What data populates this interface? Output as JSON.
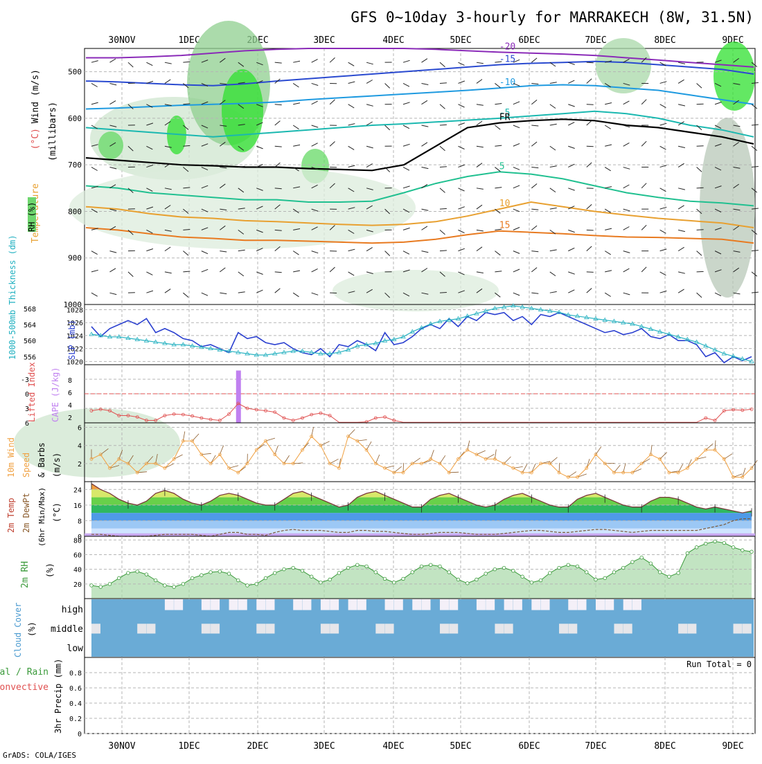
{
  "title": "GFS 0~10day 3-hourly for MARRAKECH (8W, 31.5N)",
  "credit": "GrADS: COLA/IGES",
  "dates": [
    "30NOV",
    "1DEC",
    "2DEC",
    "3DEC",
    "4DEC",
    "5DEC",
    "6DEC",
    "7DEC",
    "8DEC",
    "9DEC"
  ],
  "colors": {
    "grid": "#b5b5b5",
    "axis": "#000000",
    "thickness": "#2a3fd0",
    "slp": "#2ab3c2",
    "li": "#e05050",
    "cape": "#c080f0",
    "wind10": "#f0a040",
    "rh2m": "#3a9a3a",
    "cloud": "#6aabd6",
    "cloud_clear": "#f4f0f8"
  },
  "chart_data": [
    {
      "type": "heatmap",
      "name": "upper_air",
      "ylabel_rh": "RH (%)",
      "ylabel_main": [
        "Temperature (°C)Wind (m/s)",
        "(millibars)"
      ],
      "yticks": [
        "500",
        "600",
        "700",
        "800",
        "900",
        "1000"
      ],
      "ylim": [
        450,
        1000
      ],
      "temperature_contours": [
        {
          "label": "-20",
          "color": "#8a2ab8",
          "pressure": [
            470,
            470,
            468,
            465,
            460,
            455,
            452,
            450,
            450,
            450,
            450,
            452,
            455,
            458,
            460,
            462,
            465,
            470,
            475,
            480,
            485,
            490
          ]
        },
        {
          "label": "-15",
          "color": "#2a4ad0",
          "pressure": [
            520,
            522,
            525,
            528,
            530,
            526,
            520,
            515,
            510,
            505,
            500,
            495,
            490,
            485,
            482,
            480,
            478,
            480,
            485,
            490,
            495,
            505
          ]
        },
        {
          "label": "-10",
          "color": "#1e9ae0",
          "pressure": [
            580,
            578,
            575,
            572,
            570,
            568,
            565,
            560,
            556,
            552,
            548,
            544,
            540,
            535,
            530,
            528,
            530,
            535,
            540,
            550,
            560,
            570
          ]
        },
        {
          "label": "-5",
          "color": "#1ab8b0",
          "pressure": [
            620,
            625,
            630,
            635,
            640,
            635,
            630,
            625,
            620,
            615,
            612,
            608,
            604,
            600,
            595,
            590,
            585,
            590,
            600,
            615,
            625,
            640
          ]
        },
        {
          "label": "FR",
          "color": "#000000",
          "pressure": [
            685,
            690,
            695,
            700,
            702,
            705,
            705,
            708,
            710,
            712,
            700,
            660,
            620,
            610,
            605,
            602,
            605,
            615,
            620,
            630,
            640,
            655
          ]
        },
        {
          "label": "5",
          "color": "#20c090",
          "pressure": [
            745,
            750,
            760,
            765,
            770,
            775,
            775,
            780,
            780,
            778,
            760,
            740,
            725,
            715,
            720,
            730,
            745,
            760,
            770,
            778,
            782,
            788
          ]
        },
        {
          "label": "10",
          "color": "#e8a030",
          "pressure": [
            790,
            795,
            805,
            812,
            815,
            820,
            822,
            825,
            828,
            830,
            828,
            822,
            810,
            795,
            780,
            790,
            800,
            808,
            815,
            820,
            825,
            835
          ]
        },
        {
          "label": "15",
          "color": "#e87a20",
          "pressure": [
            835,
            840,
            848,
            855,
            858,
            862,
            862,
            864,
            866,
            868,
            866,
            860,
            850,
            842,
            845,
            848,
            852,
            855,
            856,
            858,
            860,
            868
          ]
        }
      ]
    },
    {
      "type": "line",
      "name": "thickness_slp",
      "ylabel_left": "1000-500mb Thickness (dm)",
      "ylabel_right": "SLP (mb)",
      "yticks_left": [
        "556",
        "560",
        "564",
        "568"
      ],
      "yticks_right": [
        "1020",
        "1022",
        "1024",
        "1026",
        "1028"
      ],
      "ylim_left": [
        554,
        569
      ],
      "ylim_right": [
        1019.5,
        1028.8
      ],
      "series": [
        {
          "name": "1000-500mb Thickness",
          "values": [
            563.5,
            561,
            563,
            564,
            565,
            564,
            565.5,
            562,
            563,
            562,
            560.5,
            560,
            558.5,
            559,
            558,
            557,
            562,
            560.5,
            561,
            559.5,
            559,
            559.5,
            558,
            557,
            556.5,
            558,
            556,
            559,
            558.5,
            560,
            559,
            557.5,
            562,
            559,
            559.5,
            561,
            563,
            564,
            563,
            565.5,
            563.5,
            566,
            565,
            567,
            566.5,
            567,
            565,
            566,
            564,
            566.5,
            566,
            567,
            566,
            565,
            564,
            563,
            562,
            562.5,
            561.5,
            562,
            563,
            561,
            560.5,
            561.5,
            560,
            560,
            559,
            556,
            557,
            554.5,
            556,
            555,
            556
          ]
        },
        {
          "name": "SLP",
          "values": [
            1024.2,
            1024,
            1023.8,
            1023.8,
            1023.6,
            1023.4,
            1023.2,
            1023,
            1022.8,
            1022.6,
            1022.6,
            1022.4,
            1022.2,
            1022,
            1021.8,
            1021.6,
            1021.4,
            1021.2,
            1021,
            1021,
            1021.2,
            1021.4,
            1021.6,
            1021.6,
            1021.4,
            1021.2,
            1021.2,
            1021.4,
            1021.8,
            1022.4,
            1022.6,
            1022.8,
            1023.2,
            1023.4,
            1023.8,
            1024.6,
            1025.2,
            1025.8,
            1026.2,
            1026.4,
            1026.6,
            1027,
            1027.4,
            1027.8,
            1028.2,
            1028.4,
            1028.6,
            1028.4,
            1028.2,
            1028,
            1027.8,
            1027.6,
            1027.2,
            1027,
            1026.8,
            1026.6,
            1026.4,
            1026.2,
            1026,
            1025.8,
            1025.4,
            1025,
            1024.6,
            1024.2,
            1023.8,
            1023.4,
            1023,
            1022.4,
            1021.8,
            1021.2,
            1020.8,
            1020.4,
            1020
          ]
        }
      ]
    },
    {
      "type": "line",
      "name": "li_cape",
      "ylabel_left": "Lifted Index",
      "ylabel_right": "CAPE (J/kg)",
      "yticks_left": [
        "-3",
        "0",
        "3",
        "6"
      ],
      "yticks_right": [
        "2",
        "4",
        "6",
        "8"
      ],
      "ylim": [
        -6,
        6
      ],
      "li_zero_line": 0,
      "cape_bar": {
        "index": 16,
        "value": 9
      },
      "series": [
        {
          "name": "Lifted Index",
          "values": [
            3.5,
            3.2,
            3.5,
            4.5,
            4.5,
            4.8,
            5.5,
            5.5,
            4.5,
            4.2,
            4.3,
            4.6,
            5,
            5.3,
            5.5,
            4.2,
            2,
            3,
            3.3,
            3.5,
            3.8,
            5,
            5.5,
            5,
            4.3,
            4,
            4.5,
            6.2,
            6.4,
            6,
            5.8,
            5,
            4.8,
            5.5,
            6.5,
            6.5,
            6.5,
            6.5,
            6.5,
            6.5,
            6.5,
            6.5,
            6.5,
            6.5,
            6.5,
            6.5,
            6.5,
            6.5,
            6.5,
            6.5,
            6.5,
            6.5,
            6.5,
            6.5,
            6.5,
            6.5,
            6.5,
            6.5,
            6.5,
            6.5,
            6.5,
            6.5,
            6.5,
            6.5,
            6.5,
            6.5,
            6.5,
            5,
            5.5,
            3.5,
            3.3,
            3.4,
            3.2
          ]
        }
      ]
    },
    {
      "type": "line",
      "name": "wind10m",
      "ylabel": "10m Wind Speed (m/s) & Barbs",
      "yticks": [
        "2",
        "4",
        "6"
      ],
      "ylim": [
        0,
        6.5
      ],
      "series": [
        {
          "name": "10m Wind Speed",
          "values": [
            2.5,
            3,
            1.5,
            2.5,
            2,
            1,
            2,
            2,
            1.5,
            2.5,
            4.5,
            4.5,
            3,
            2,
            3,
            1.5,
            1,
            2,
            3.5,
            4.5,
            3,
            2,
            2,
            3.5,
            5,
            4,
            2,
            1.5,
            5,
            4.5,
            3.5,
            2,
            1.5,
            1,
            1,
            2,
            2,
            2.5,
            2,
            1,
            2.5,
            3.5,
            3,
            2.5,
            2.5,
            2,
            1.5,
            1,
            1,
            2,
            2,
            1,
            0.5,
            0.5,
            1.5,
            3,
            2,
            1,
            1,
            1,
            2,
            3,
            2.5,
            1,
            1,
            1.5,
            2.5,
            3.5,
            3.5,
            2.5,
            0.5,
            0.5,
            1.5
          ]
        }
      ]
    },
    {
      "type": "area",
      "name": "temp2m",
      "ylabel": "2m Temp 2m DewPt (6hr Min/Max) (°C)",
      "yticks": [
        "0",
        "8",
        "16",
        "24"
      ],
      "ylim": [
        0,
        28
      ],
      "series": [
        {
          "name": "2m Temp",
          "values": [
            27,
            24,
            22,
            19,
            17,
            16,
            18,
            22,
            23.5,
            22,
            19,
            17,
            16,
            18,
            21,
            22,
            21,
            19,
            17,
            16,
            16,
            19,
            22,
            23,
            21,
            19,
            17,
            15,
            16,
            20,
            22,
            23,
            21,
            19,
            17,
            15,
            15,
            19,
            21,
            22,
            20,
            18,
            16,
            15,
            16,
            19,
            21,
            22,
            20,
            18,
            16,
            15,
            15,
            19,
            21,
            22,
            20,
            18,
            16,
            15,
            15,
            18,
            20,
            20,
            19,
            17,
            15,
            14,
            15,
            14,
            13,
            12,
            13
          ]
        },
        {
          "name": "2m DewPt",
          "values": [
            1,
            1,
            0.5,
            0,
            0,
            0,
            0,
            0.5,
            1,
            1,
            1,
            1,
            0.5,
            0,
            1,
            2,
            2,
            1,
            1,
            0.5,
            2,
            3,
            3.5,
            3,
            3,
            3,
            2.5,
            2,
            2,
            3,
            3,
            2.5,
            2.5,
            2,
            1.5,
            1,
            1,
            1.5,
            2,
            2,
            2,
            1.5,
            1,
            1,
            1,
            1.5,
            2,
            2.5,
            3,
            3,
            2.5,
            2,
            2,
            2.5,
            3,
            3.5,
            3.5,
            3,
            2.5,
            2,
            2.5,
            3,
            3,
            3,
            3,
            3,
            3,
            4,
            5,
            6,
            8,
            9,
            9
          ]
        }
      ]
    },
    {
      "type": "area",
      "name": "rh2m",
      "ylabel": "2m RH (%)",
      "yticks": [
        "20",
        "40",
        "60",
        "80"
      ],
      "ylim": [
        0,
        85
      ],
      "series": [
        {
          "name": "2m RH",
          "values": [
            18,
            16,
            20,
            28,
            35,
            37,
            33,
            25,
            18,
            16,
            20,
            28,
            32,
            36,
            37,
            34,
            25,
            18,
            20,
            28,
            35,
            40,
            42,
            38,
            30,
            22,
            26,
            35,
            42,
            46,
            44,
            36,
            27,
            22,
            27,
            36,
            44,
            46,
            44,
            36,
            26,
            21,
            26,
            34,
            40,
            42,
            38,
            30,
            22,
            25,
            35,
            42,
            46,
            44,
            36,
            26,
            28,
            36,
            42,
            50,
            56,
            48,
            36,
            30,
            35,
            62,
            70,
            75,
            78,
            76,
            70,
            66,
            64
          ]
        }
      ]
    },
    {
      "type": "heatmap",
      "name": "cloud_cover",
      "ylabel": "Cloud Cover (%)",
      "rows": [
        "high",
        "middle",
        "low"
      ]
    },
    {
      "type": "bar",
      "name": "precip",
      "ylabel_a": "Total / Rain",
      "ylabel_b": "Convective",
      "ylabel_c": "3hr Precip (mm)",
      "yticks": [
        "0",
        "0.2",
        "0.4",
        "0.6",
        "0.8"
      ],
      "ylim": [
        0,
        1
      ],
      "run_total": "Run Total = 0",
      "values": []
    }
  ]
}
